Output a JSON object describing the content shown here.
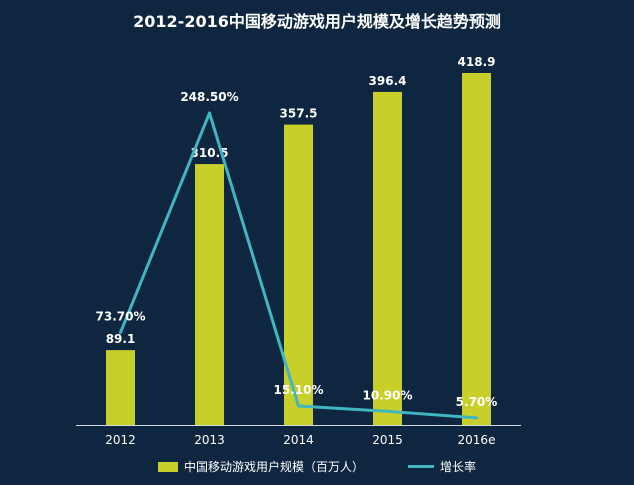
{
  "colors": {
    "background": "#0e2640",
    "bar": "#c8cf2a",
    "line": "#3fb6c1",
    "text": "#ffffff",
    "axis": "#d0d8e0"
  },
  "chart_data": {
    "type": "bar",
    "title": "2012-2016中国移动游戏用户规模及增长趋势预测",
    "categories": [
      "2012",
      "2013",
      "2014",
      "2015",
      "2016e"
    ],
    "series": [
      {
        "name": "中国移动游戏用户规模（百万人）",
        "type": "bar",
        "values": [
          89.1,
          310.5,
          357.5,
          396.4,
          418.9
        ],
        "labels": [
          "89.1",
          "310.5",
          "357.5",
          "396.4",
          "418.9"
        ]
      },
      {
        "name": "增长率",
        "type": "line",
        "values": [
          73.7,
          248.5,
          15.1,
          10.9,
          5.7
        ],
        "labels": [
          "73.70%",
          "248.50%",
          "15.10%",
          "10.90%",
          "5.70%"
        ]
      }
    ],
    "ylim_bar": [
      0,
      450
    ],
    "ylim_line": [
      0,
      300
    ],
    "legend_position": "bottom",
    "grid": false
  }
}
